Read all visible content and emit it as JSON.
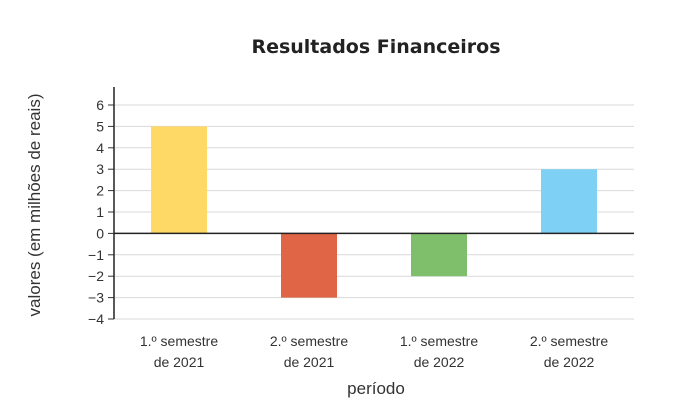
{
  "chart_data": {
    "type": "bar",
    "title": "Resultados Financeiros",
    "xlabel": "período",
    "ylabel": "valores (em milhões de reais)",
    "categories": [
      [
        "1.º semestre",
        "de 2021"
      ],
      [
        "2.º semestre",
        "de 2021"
      ],
      [
        "1.º semestre",
        "de 2022"
      ],
      [
        "2.º semestre",
        "de 2022"
      ]
    ],
    "values": [
      5,
      -3,
      -2,
      3
    ],
    "bar_colors": [
      "#FFD966",
      "#E06446",
      "#7FBF6B",
      "#7FD0F5"
    ],
    "ylim": [
      -4,
      6
    ],
    "yticks": [
      6,
      5,
      4,
      3,
      2,
      1,
      0,
      -1,
      -2,
      -3,
      -4
    ],
    "ytick_labels": [
      "6",
      "5",
      "4",
      "3",
      "2",
      "1",
      "0",
      "−1",
      "−2",
      "−3",
      "−4"
    ],
    "grid": true,
    "legend": "none"
  }
}
